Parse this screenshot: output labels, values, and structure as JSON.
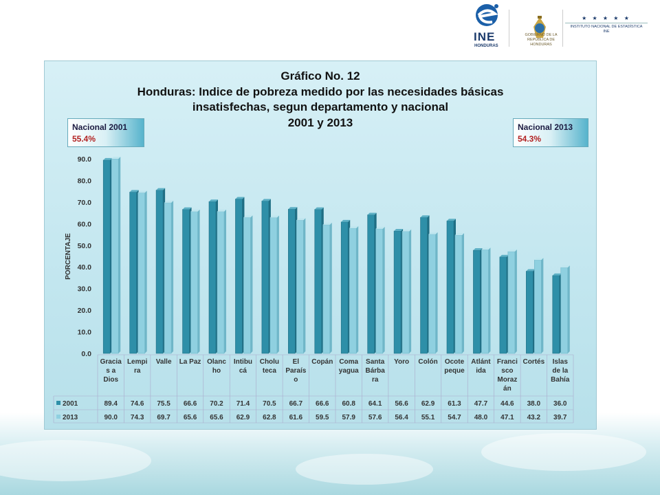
{
  "header": {
    "ine_logo_text": "INE",
    "ine_logo_subtext": "HONDURAS",
    "gov_logo_text": "GOBIERNO DE LA REPÚBLICA DE HONDURAS",
    "institute_stars": "★ ★ ★ ★ ★",
    "institute_name": "INSTITUTO NACIONAL DE ESTADÍSTICA",
    "institute_abbr": "INE"
  },
  "chart_title": {
    "line1": "Gráfico No. 12",
    "line2": "Honduras: Indice de pobreza medido por las necesidades básicas",
    "line3": "insatisfechas, segun departamento y nacional",
    "line4": "2001 y 2013"
  },
  "callouts": {
    "left": {
      "label": "Nacional 2001",
      "value": "55.4%"
    },
    "right": {
      "label": "Nacional 2013",
      "value": "54.3%"
    }
  },
  "colors": {
    "series_2001": "#2e8fa8",
    "series_2013": "#8fd0e0",
    "accent_red": "#b22222"
  },
  "chart_data": {
    "type": "bar",
    "title": "Honduras: Indice de pobreza medido por las necesidades básicas insatisfechas, segun departamento y nacional 2001 y 2013",
    "ylabel": "PORCENTAJE",
    "xlabel": "",
    "ylim": [
      0,
      90
    ],
    "yticks": [
      "0.0",
      "10.0",
      "20.0",
      "30.0",
      "40.0",
      "50.0",
      "60.0",
      "70.0",
      "80.0",
      "90.0"
    ],
    "grid": false,
    "legend": "data-table",
    "categories": [
      [
        "Gracia",
        "s a",
        "Dios"
      ],
      [
        "Lempi",
        "ra"
      ],
      [
        "Valle"
      ],
      [
        "La Paz"
      ],
      [
        "Olanc",
        "ho"
      ],
      [
        "Intibu",
        "cá"
      ],
      [
        "Cholu",
        "teca"
      ],
      [
        "El",
        "Paraís",
        "o"
      ],
      [
        "Copán"
      ],
      [
        "Coma",
        "yagua"
      ],
      [
        "Santa",
        "Bárba",
        "ra"
      ],
      [
        "Yoro"
      ],
      [
        "Colón"
      ],
      [
        "Ocote",
        "peque"
      ],
      [
        "Atlánt",
        "ida"
      ],
      [
        "Franci",
        "sco",
        "Moraz",
        "án"
      ],
      [
        "Cortés"
      ],
      [
        "Islas",
        "de la",
        "Bahía"
      ]
    ],
    "series": [
      {
        "name": "2001",
        "values": [
          89.4,
          74.6,
          75.5,
          66.6,
          70.2,
          71.4,
          70.5,
          66.7,
          66.6,
          60.8,
          64.1,
          56.6,
          62.9,
          61.3,
          47.7,
          44.6,
          38.0,
          36.0
        ],
        "labels": [
          "89.4",
          "74.6",
          "75.5",
          "66.6",
          "70.2",
          "71.4",
          "70.5",
          "66.7",
          "66.6",
          "60.8",
          "64.1",
          "56.6",
          "62.9",
          "61.3",
          "47.7",
          "44.6",
          "38.0",
          "36.0"
        ]
      },
      {
        "name": "2013",
        "values": [
          90.0,
          74.3,
          69.7,
          65.6,
          65.6,
          62.9,
          62.8,
          61.6,
          59.5,
          57.9,
          57.6,
          56.4,
          55.1,
          54.7,
          48.0,
          47.1,
          43.2,
          39.7
        ],
        "labels": [
          "90.0",
          "74.3",
          "69.7",
          "65.6",
          "65.6",
          "62.9",
          "62.8",
          "61.6",
          "59.5",
          "57.9",
          "57.6",
          "56.4",
          "55.1",
          "54.7",
          "48.0",
          "47.1",
          "43.2",
          "39.7"
        ]
      }
    ]
  }
}
